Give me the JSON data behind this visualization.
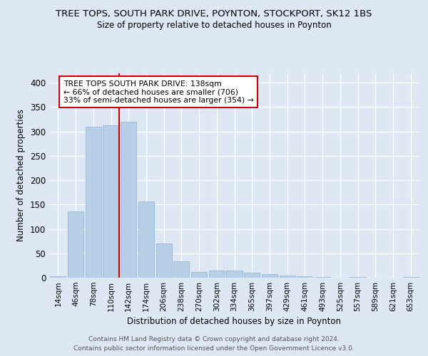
{
  "title": "TREE TOPS, SOUTH PARK DRIVE, POYNTON, STOCKPORT, SK12 1BS",
  "subtitle": "Size of property relative to detached houses in Poynton",
  "xlabel": "Distribution of detached houses by size in Poynton",
  "ylabel": "Number of detached properties",
  "categories": [
    "14sqm",
    "46sqm",
    "78sqm",
    "110sqm",
    "142sqm",
    "174sqm",
    "206sqm",
    "238sqm",
    "270sqm",
    "302sqm",
    "334sqm",
    "365sqm",
    "397sqm",
    "429sqm",
    "461sqm",
    "493sqm",
    "525sqm",
    "557sqm",
    "589sqm",
    "621sqm",
    "653sqm"
  ],
  "values": [
    3,
    136,
    310,
    313,
    320,
    157,
    70,
    33,
    11,
    14,
    14,
    10,
    8,
    5,
    3,
    2,
    0,
    1,
    0,
    0,
    2
  ],
  "bar_color": "#b8cfe8",
  "bar_edge_color": "#8aafd0",
  "vline_color": "#cc0000",
  "vline_pos": 3.48,
  "annotation_line1": "TREE TOPS SOUTH PARK DRIVE: 138sqm",
  "annotation_line2": "← 66% of detached houses are smaller (706)",
  "annotation_line3": "33% of semi-detached houses are larger (354) →",
  "annotation_box_color": "#ffffff",
  "annotation_box_edge": "#cc0000",
  "ylim": [
    0,
    420
  ],
  "yticks": [
    0,
    50,
    100,
    150,
    200,
    250,
    300,
    350,
    400
  ],
  "footer1": "Contains HM Land Registry data © Crown copyright and database right 2024.",
  "footer2": "Contains public sector information licensed under the Open Government Licence v3.0.",
  "bg_color": "#dde8f4",
  "plot_bg_color": "#dde8f4",
  "title_fontsize": 9.5,
  "subtitle_fontsize": 8.5
}
